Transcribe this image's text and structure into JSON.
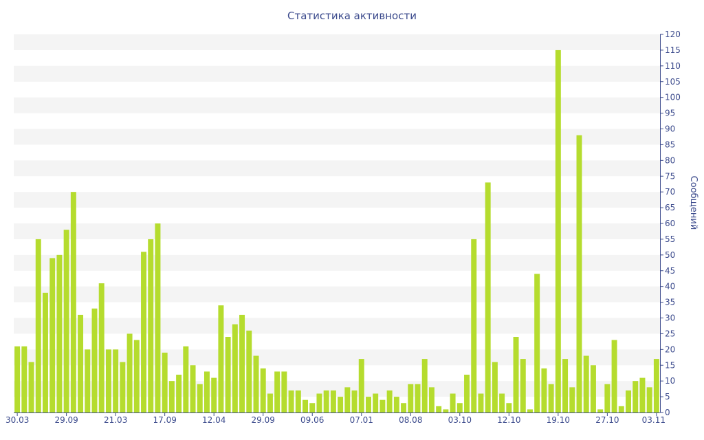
{
  "chart_data": {
    "type": "bar",
    "title": "Статистика активности",
    "xlabel": "",
    "ylabel": "Сообщений",
    "ylim": [
      0,
      120
    ],
    "y_ticks": [
      0,
      5,
      10,
      15,
      20,
      25,
      30,
      35,
      40,
      45,
      50,
      55,
      60,
      65,
      70,
      75,
      80,
      85,
      90,
      95,
      100,
      105,
      110,
      115,
      120
    ],
    "grid": "horizontal alternating bands",
    "bar_color": "#b5dc2e",
    "axis_color": "#3b4a8c",
    "x_tick_labels": [
      {
        "index": 0,
        "label": "30.03"
      },
      {
        "index": 7,
        "label": "29.09"
      },
      {
        "index": 14,
        "label": "21.03"
      },
      {
        "index": 21,
        "label": "17.09"
      },
      {
        "index": 28,
        "label": "12.04"
      },
      {
        "index": 35,
        "label": "29.09"
      },
      {
        "index": 42,
        "label": "09.06"
      },
      {
        "index": 49,
        "label": "07.01"
      },
      {
        "index": 56,
        "label": "08.08"
      },
      {
        "index": 63,
        "label": "03.10"
      },
      {
        "index": 70,
        "label": "12.10"
      },
      {
        "index": 77,
        "label": "19.10"
      },
      {
        "index": 84,
        "label": "27.10"
      },
      {
        "index": 91,
        "label": "03.11"
      }
    ],
    "values": [
      21,
      21,
      16,
      55,
      38,
      49,
      50,
      58,
      70,
      31,
      20,
      33,
      41,
      20,
      20,
      16,
      25,
      23,
      51,
      55,
      60,
      19,
      10,
      12,
      21,
      15,
      9,
      13,
      11,
      34,
      24,
      28,
      31,
      26,
      18,
      14,
      6,
      13,
      13,
      7,
      7,
      4,
      3,
      6,
      7,
      7,
      5,
      8,
      7,
      17,
      5,
      6,
      4,
      7,
      5,
      3,
      9,
      9,
      17,
      8,
      2,
      1,
      6,
      3,
      12,
      55,
      6,
      73,
      16,
      6,
      3,
      24,
      17,
      1,
      44,
      14,
      9,
      115,
      17,
      8,
      88,
      18,
      15,
      1,
      9,
      23,
      2,
      7,
      10,
      11,
      8,
      17
    ]
  }
}
